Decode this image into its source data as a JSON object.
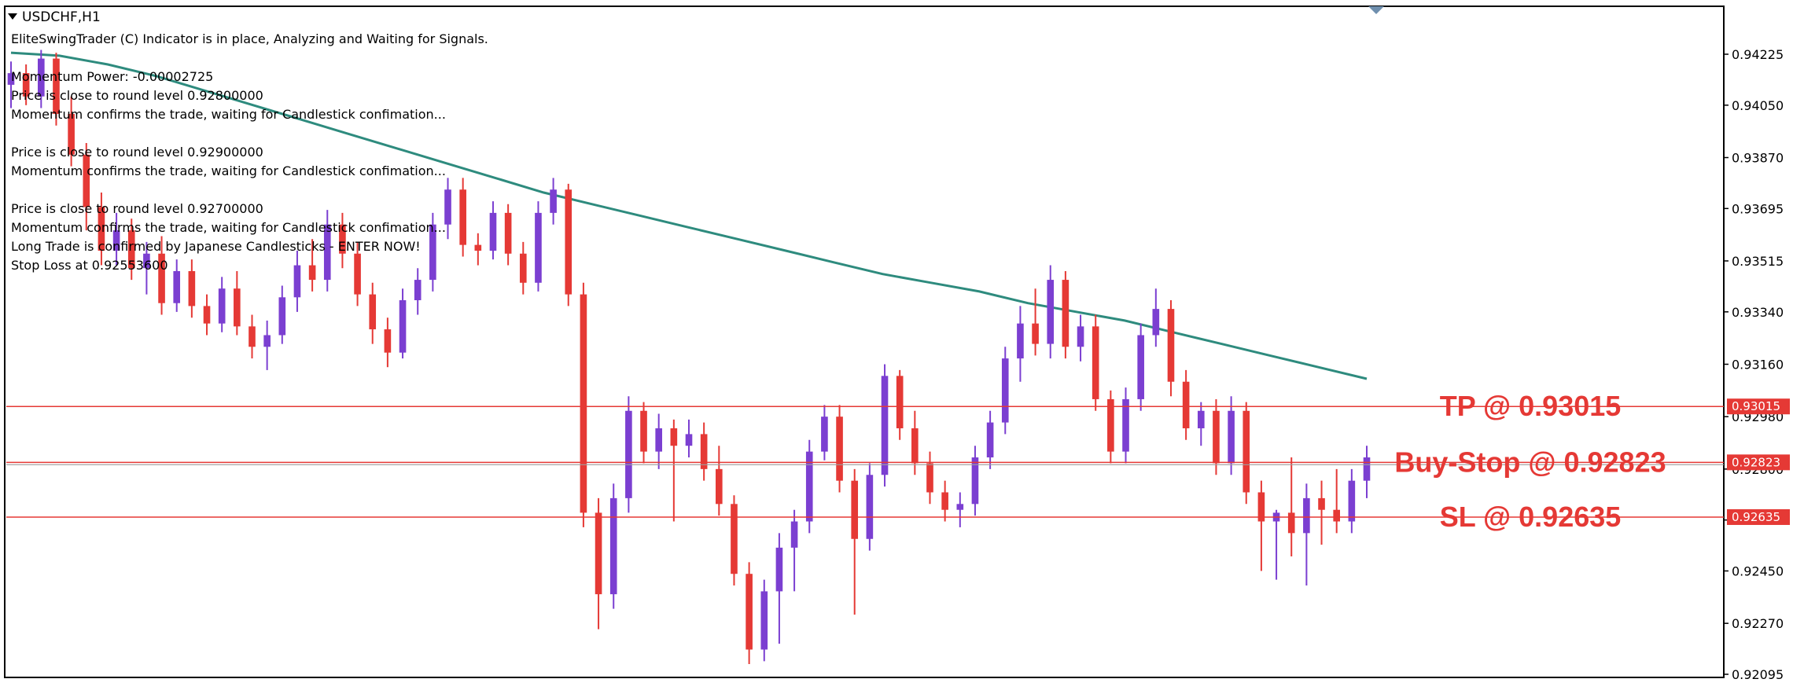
{
  "window": {
    "title": "USDCHF,H1"
  },
  "info_lines": [
    "EliteSwingTrader (C) Indicator is in place, Analyzing and Waiting for Signals.",
    "",
    "Momentum Power: -0.00002725",
    "Price is close to round level 0.92800000",
    "Momentum confirms the trade, waiting for Candlestick confimation...",
    "",
    "Price is close to round level 0.92900000",
    "Momentum confirms the trade, waiting for Candlestick confimation...",
    "",
    "Price is close to round level 0.92700000",
    "Momentum confirms the trade, waiting for Candlestick confimation...",
    "Long Trade is confirmed by Japanese Candlesticks - ENTER NOW!",
    "Stop Loss at 0.92553600"
  ],
  "colors": {
    "bull": "#7b3fd1",
    "bear": "#e53935",
    "ma": "#2e8b7e",
    "level": "#e53935",
    "price_line": "#9e9e9e",
    "axis": "#000000"
  },
  "chart_data": {
    "type": "candlestick",
    "symbol": "USDCHF",
    "timeframe": "H1",
    "ylim": [
      0.92095,
      0.94225
    ],
    "y_ticks": [
      "0.94225",
      "0.94050",
      "0.93870",
      "0.93695",
      "0.93515",
      "0.93340",
      "0.93160",
      "0.92980",
      "0.92800",
      "0.92625",
      "0.92450",
      "0.92270",
      "0.92095"
    ],
    "levels": [
      {
        "name": "TP",
        "label": "TP @ 0.93015",
        "value": 0.93015,
        "tag": "0.93015"
      },
      {
        "name": "Buy-Stop",
        "label": "Buy-Stop @ 0.92823",
        "value": 0.92823,
        "tag": "0.92823"
      },
      {
        "name": "SL",
        "label": "SL @ 0.92635",
        "value": 0.92635,
        "tag": "0.92635"
      }
    ],
    "current_price": 0.92815,
    "ma_line": [
      0.9423,
      0.9422,
      0.9419,
      0.9415,
      0.941,
      0.9405,
      0.94,
      0.9395,
      0.939,
      0.9385,
      0.938,
      0.9375,
      0.9371,
      0.9367,
      0.9363,
      0.9359,
      0.9355,
      0.9351,
      0.9347,
      0.9344,
      0.9341,
      0.9337,
      0.9334,
      0.9331,
      0.9327,
      0.9323,
      0.9319,
      0.9315,
      0.9311
    ],
    "candles": [
      [
        0.9412,
        0.942,
        0.9404,
        0.9416
      ],
      [
        0.9416,
        0.9419,
        0.9405,
        0.9408
      ],
      [
        0.9408,
        0.9424,
        0.9404,
        0.9421
      ],
      [
        0.9421,
        0.9423,
        0.9398,
        0.9402
      ],
      [
        0.9402,
        0.9408,
        0.9384,
        0.9388
      ],
      [
        0.9388,
        0.9392,
        0.9362,
        0.937
      ],
      [
        0.937,
        0.9375,
        0.935,
        0.9355
      ],
      [
        0.9355,
        0.9368,
        0.935,
        0.9362
      ],
      [
        0.9362,
        0.9366,
        0.9345,
        0.9349
      ],
      [
        0.9349,
        0.9358,
        0.934,
        0.9354
      ],
      [
        0.9354,
        0.936,
        0.9333,
        0.9337
      ],
      [
        0.9337,
        0.9352,
        0.9334,
        0.9348
      ],
      [
        0.9348,
        0.9352,
        0.9332,
        0.9336
      ],
      [
        0.9336,
        0.934,
        0.9326,
        0.933
      ],
      [
        0.933,
        0.9346,
        0.9327,
        0.9342
      ],
      [
        0.9342,
        0.9348,
        0.9326,
        0.9329
      ],
      [
        0.9329,
        0.9333,
        0.9318,
        0.9322
      ],
      [
        0.9322,
        0.9331,
        0.9314,
        0.9326
      ],
      [
        0.9326,
        0.9343,
        0.9323,
        0.9339
      ],
      [
        0.9339,
        0.9355,
        0.9334,
        0.935
      ],
      [
        0.935,
        0.9359,
        0.9341,
        0.9345
      ],
      [
        0.9345,
        0.9369,
        0.9341,
        0.9364
      ],
      [
        0.9364,
        0.9368,
        0.9349,
        0.9354
      ],
      [
        0.9354,
        0.9358,
        0.9336,
        0.934
      ],
      [
        0.934,
        0.9344,
        0.9323,
        0.9328
      ],
      [
        0.9328,
        0.9332,
        0.9315,
        0.932
      ],
      [
        0.932,
        0.9342,
        0.9318,
        0.9338
      ],
      [
        0.9338,
        0.9349,
        0.9333,
        0.9345
      ],
      [
        0.9345,
        0.9368,
        0.9341,
        0.9364
      ],
      [
        0.9364,
        0.938,
        0.9359,
        0.9376
      ],
      [
        0.9376,
        0.938,
        0.9353,
        0.9357
      ],
      [
        0.9357,
        0.9361,
        0.935,
        0.9355
      ],
      [
        0.9355,
        0.9372,
        0.9352,
        0.9368
      ],
      [
        0.9368,
        0.9371,
        0.935,
        0.9354
      ],
      [
        0.9354,
        0.9358,
        0.934,
        0.9344
      ],
      [
        0.9344,
        0.9372,
        0.9341,
        0.9368
      ],
      [
        0.9368,
        0.938,
        0.9364,
        0.9376
      ],
      [
        0.9376,
        0.9378,
        0.9336,
        0.934
      ],
      [
        0.934,
        0.9344,
        0.926,
        0.9265
      ],
      [
        0.9265,
        0.927,
        0.9225,
        0.9237
      ],
      [
        0.9237,
        0.9275,
        0.9232,
        0.927
      ],
      [
        0.927,
        0.9305,
        0.9265,
        0.93
      ],
      [
        0.93,
        0.9303,
        0.9282,
        0.9286
      ],
      [
        0.9286,
        0.9299,
        0.928,
        0.9294
      ],
      [
        0.9294,
        0.9297,
        0.9262,
        0.9288
      ],
      [
        0.9288,
        0.9297,
        0.9284,
        0.9292
      ],
      [
        0.9292,
        0.9296,
        0.9276,
        0.928
      ],
      [
        0.928,
        0.9288,
        0.9264,
        0.9268
      ],
      [
        0.9268,
        0.9271,
        0.924,
        0.9244
      ],
      [
        0.9244,
        0.9248,
        0.9213,
        0.9218
      ],
      [
        0.9218,
        0.9242,
        0.9214,
        0.9238
      ],
      [
        0.9238,
        0.9258,
        0.922,
        0.9253
      ],
      [
        0.9253,
        0.9266,
        0.9238,
        0.9262
      ],
      [
        0.9262,
        0.929,
        0.9258,
        0.9286
      ],
      [
        0.9286,
        0.9302,
        0.9283,
        0.9298
      ],
      [
        0.9298,
        0.9302,
        0.9272,
        0.9276
      ],
      [
        0.9276,
        0.928,
        0.923,
        0.9256
      ],
      [
        0.9256,
        0.9282,
        0.9252,
        0.9278
      ],
      [
        0.9278,
        0.9316,
        0.9274,
        0.9312
      ],
      [
        0.9312,
        0.9314,
        0.929,
        0.9294
      ],
      [
        0.9294,
        0.93,
        0.9278,
        0.9282
      ],
      [
        0.9282,
        0.9286,
        0.9268,
        0.9272
      ],
      [
        0.9272,
        0.9276,
        0.9262,
        0.9266
      ],
      [
        0.9266,
        0.9272,
        0.926,
        0.9268
      ],
      [
        0.9268,
        0.9288,
        0.9264,
        0.9284
      ],
      [
        0.9284,
        0.93,
        0.928,
        0.9296
      ],
      [
        0.9296,
        0.9322,
        0.9292,
        0.9318
      ],
      [
        0.9318,
        0.9336,
        0.931,
        0.933
      ],
      [
        0.933,
        0.9342,
        0.9319,
        0.9323
      ],
      [
        0.9323,
        0.935,
        0.9318,
        0.9345
      ],
      [
        0.9345,
        0.9348,
        0.9318,
        0.9322
      ],
      [
        0.9322,
        0.9333,
        0.9317,
        0.9329
      ],
      [
        0.9329,
        0.9333,
        0.93,
        0.9304
      ],
      [
        0.9304,
        0.9307,
        0.9282,
        0.9286
      ],
      [
        0.9286,
        0.9308,
        0.9282,
        0.9304
      ],
      [
        0.9304,
        0.933,
        0.93,
        0.9326
      ],
      [
        0.9326,
        0.9342,
        0.9322,
        0.9335
      ],
      [
        0.9335,
        0.9338,
        0.9305,
        0.931
      ],
      [
        0.931,
        0.9314,
        0.929,
        0.9294
      ],
      [
        0.9294,
        0.9303,
        0.9288,
        0.93
      ],
      [
        0.93,
        0.9304,
        0.9278,
        0.9282
      ],
      [
        0.9282,
        0.9305,
        0.9278,
        0.93
      ],
      [
        0.93,
        0.9303,
        0.9268,
        0.9272
      ],
      [
        0.9272,
        0.9276,
        0.9245,
        0.9262
      ],
      [
        0.9262,
        0.9266,
        0.9242,
        0.9265
      ],
      [
        0.9265,
        0.9284,
        0.925,
        0.9258
      ],
      [
        0.9258,
        0.9275,
        0.924,
        0.927
      ],
      [
        0.927,
        0.9276,
        0.9254,
        0.9266
      ],
      [
        0.9266,
        0.928,
        0.9258,
        0.9262
      ],
      [
        0.9262,
        0.928,
        0.9258,
        0.9276
      ],
      [
        0.9276,
        0.9288,
        0.927,
        0.9284
      ]
    ],
    "title": "USDCHF,H1"
  }
}
